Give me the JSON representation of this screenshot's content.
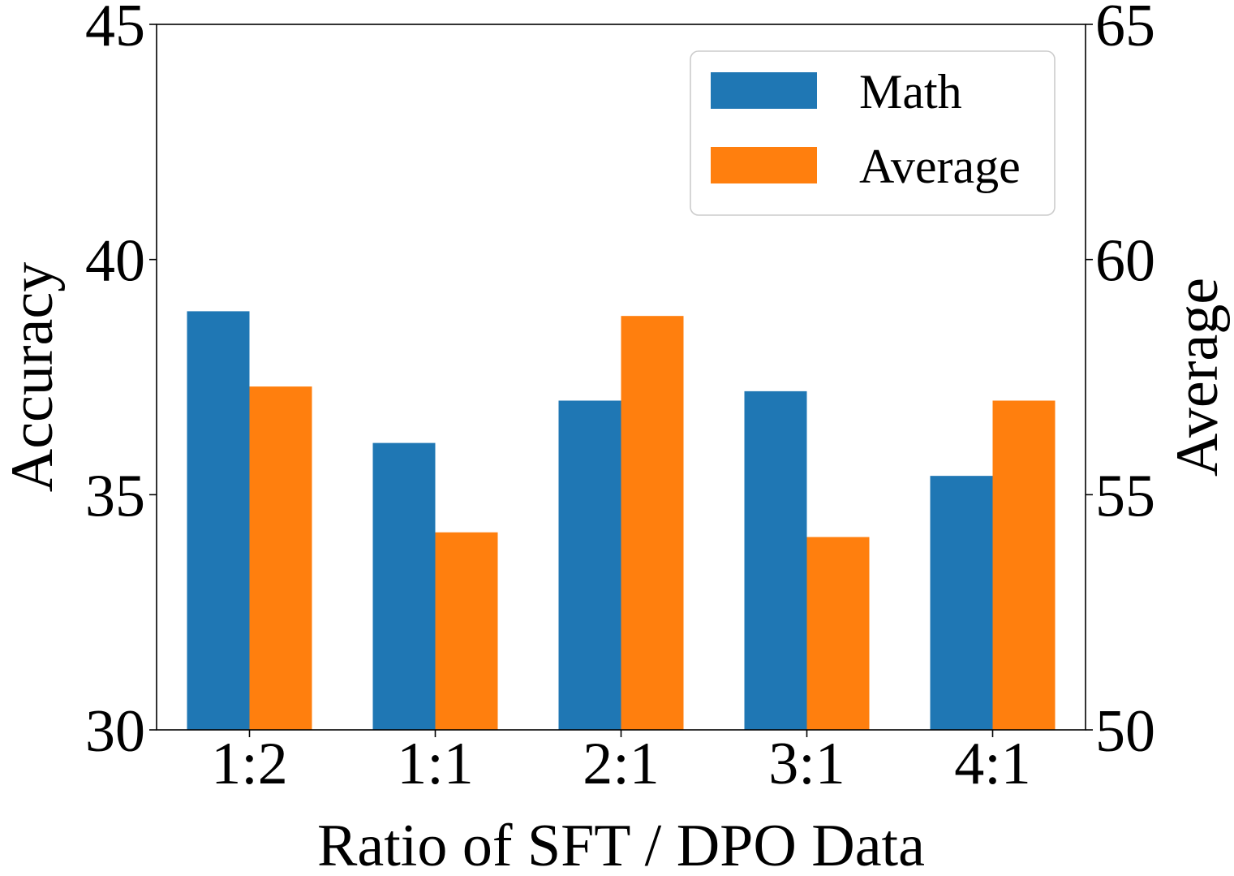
{
  "chart_data": {
    "type": "bar",
    "xlabel": "Ratio of SFT / DPO Data",
    "categories": [
      "1:2",
      "1:1",
      "2:1",
      "3:1",
      "4:1"
    ],
    "left_axis": {
      "label": "Accuracy",
      "ylim": [
        30,
        45
      ],
      "ticks": [
        "30",
        "35",
        "40",
        "45"
      ]
    },
    "right_axis": {
      "label": "Average",
      "ylim": [
        50,
        65
      ],
      "ticks": [
        "50",
        "55",
        "60",
        "65"
      ]
    },
    "series": [
      {
        "name": "Math",
        "axis": "left",
        "color": "#1f77b4",
        "values": [
          38.9,
          36.1,
          37.0,
          37.2,
          35.4
        ]
      },
      {
        "name": "Average",
        "axis": "right",
        "color": "#ff7f0e",
        "values": [
          57.3,
          54.2,
          58.8,
          54.1,
          57.0
        ]
      }
    ],
    "legend": {
      "position": "top-right"
    },
    "grid": false
  }
}
